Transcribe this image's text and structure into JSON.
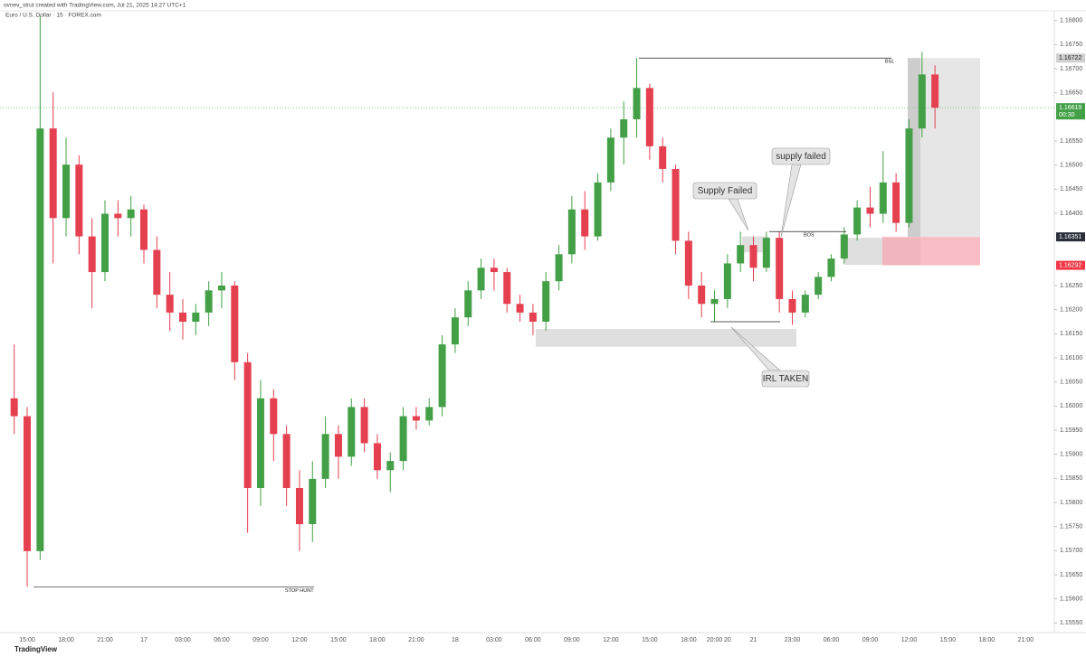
{
  "chart_data": {
    "type": "candlestick",
    "credit": "ovnev_strut created with TradingView.com, Jul 21, 2025 14:27 UTC+1",
    "title": "Euro / U.S. Dollar · 15 · FOREX.com",
    "brand": "TradingView",
    "up_color": "#43a047",
    "down_color": "#e5404f",
    "grid": false,
    "categories": [
      null,
      "15:00",
      null,
      null,
      "18:00",
      null,
      null,
      "21:00",
      null,
      null,
      "17",
      null,
      null,
      "03:00",
      null,
      null,
      "06:00",
      null,
      null,
      "09:00",
      null,
      null,
      "12:00",
      null,
      null,
      "15:00",
      null,
      null,
      "18:00",
      null,
      null,
      "21:00",
      null,
      null,
      "18",
      null,
      null,
      "03:00",
      null,
      null,
      "06:00",
      null,
      null,
      "09:00",
      null,
      null,
      "12:00",
      null,
      null,
      "15:00",
      null,
      null,
      "18:00",
      null,
      "20:00",
      "20",
      null,
      "21",
      null,
      null,
      "23:00",
      null,
      null,
      "06:00",
      null,
      null,
      "09:00",
      null,
      null,
      "12:00",
      null,
      null,
      "15:00",
      null,
      null,
      "18:00",
      null,
      null,
      "21:00",
      null
    ],
    "open": [
      1.16016,
      1.15979,
      1.15699,
      1.16576,
      1.1639,
      1.16501,
      1.16352,
      1.16278,
      1.16399,
      1.1639,
      1.16408,
      1.16324,
      1.16231,
      1.16194,
      1.16175,
      1.16194,
      1.1624,
      1.1625,
      1.16091,
      1.1583,
      1.16016,
      1.15942,
      1.1583,
      1.15755,
      1.15849,
      1.15942,
      1.15895,
      1.15998,
      1.15923,
      1.15867,
      1.15886,
      1.15979,
      1.1597,
      1.15998,
      1.16128,
      1.16184,
      1.1624,
      1.16287,
      1.16278,
      1.16212,
      1.16194,
      1.16175,
      1.16259,
      1.16315,
      1.16408,
      1.16352,
      1.16464,
      1.16557,
      1.16595,
      1.1666,
      1.16539,
      1.16492,
      1.16343,
      1.1625,
      1.16212,
      1.16222,
      1.16296,
      1.16334,
      1.16287,
      1.16349,
      1.16222,
      1.16194,
      1.16231,
      1.16268,
      1.16306,
      1.16356,
      1.16412,
      1.16399,
      1.16464,
      1.1638,
      1.16576,
      1.16688,
      null,
      null,
      null,
      null,
      null,
      null,
      null,
      null
    ],
    "high": [
      1.16128,
      1.15998,
      1.16809,
      1.16651,
      1.16557,
      1.1652,
      1.1639,
      1.16427,
      1.16427,
      1.16436,
      1.16418,
      1.16352,
      1.16278,
      1.16222,
      1.16212,
      1.16259,
      1.16278,
      1.16259,
      1.1611,
      1.16054,
      1.16035,
      1.1596,
      1.15867,
      1.15886,
      1.15979,
      1.1596,
      1.16016,
      1.16016,
      1.15942,
      1.15904,
      1.15998,
      1.15998,
      1.16016,
      1.16147,
      1.16203,
      1.16259,
      1.16306,
      1.16306,
      1.16287,
      1.16231,
      1.16212,
      1.16278,
      1.16334,
      1.16436,
      1.16446,
      1.16483,
      1.16576,
      1.16632,
      1.16722,
      1.16669,
      1.16557,
      1.16501,
      1.16362,
      1.16278,
      1.1624,
      1.16315,
      1.16362,
      1.16352,
      1.16362,
      1.16362,
      1.1624,
      1.1624,
      1.16278,
      1.16315,
      1.16371,
      1.16427,
      1.16455,
      1.16529,
      1.16483,
      1.16595,
      1.16735,
      1.16707,
      null,
      null,
      null,
      null,
      null,
      null,
      null,
      null
    ],
    "low": [
      1.15942,
      1.15625,
      1.15681,
      1.16296,
      1.16352,
      1.16315,
      1.16203,
      1.16259,
      1.16352,
      1.16352,
      1.16296,
      1.16203,
      1.16156,
      1.16138,
      1.16147,
      1.16166,
      1.16203,
      1.16054,
      1.15737,
      1.15793,
      1.15886,
      1.15793,
      1.15699,
      1.15718,
      1.1583,
      1.15849,
      1.15876,
      1.15904,
      1.15849,
      1.15821,
      1.15867,
      1.15951,
      1.1596,
      1.15979,
      1.1611,
      1.16166,
      1.16222,
      1.1624,
      1.16194,
      1.16175,
      1.16147,
      1.16156,
      1.1624,
      1.16296,
      1.16324,
      1.16343,
      1.16446,
      1.16501,
      1.16557,
      1.16511,
      1.16464,
      1.16315,
      1.16222,
      1.16184,
      1.16175,
      1.16203,
      1.16278,
      1.16259,
      1.16278,
      1.16194,
      1.16169,
      1.16184,
      1.16222,
      1.16259,
      1.16296,
      1.16343,
      1.16371,
      1.1638,
      1.16362,
      1.16371,
      1.16557,
      1.16576,
      null,
      null,
      null,
      null,
      null,
      null,
      null,
      null
    ],
    "close": [
      1.15979,
      1.15699,
      1.16576,
      1.1639,
      1.16501,
      1.16352,
      1.16278,
      1.16399,
      1.1639,
      1.16408,
      1.16324,
      1.16231,
      1.16194,
      1.16175,
      1.16194,
      1.1624,
      1.1625,
      1.16091,
      1.1583,
      1.16016,
      1.15942,
      1.1583,
      1.15755,
      1.15849,
      1.15942,
      1.15895,
      1.15998,
      1.15923,
      1.15867,
      1.15886,
      1.15979,
      1.1597,
      1.15998,
      1.16128,
      1.16184,
      1.1624,
      1.16287,
      1.16278,
      1.16212,
      1.16194,
      1.16175,
      1.16259,
      1.16315,
      1.16408,
      1.16352,
      1.16464,
      1.16557,
      1.16595,
      1.1666,
      1.16539,
      1.16492,
      1.16343,
      1.1625,
      1.16212,
      1.16222,
      1.16296,
      1.16334,
      1.16287,
      1.16349,
      1.16222,
      1.16194,
      1.16231,
      1.16268,
      1.16306,
      1.16356,
      1.16412,
      1.16399,
      1.16464,
      1.1638,
      1.16576,
      1.16688,
      1.16619,
      null,
      null,
      null,
      null,
      null,
      null,
      null,
      null
    ],
    "ylim": [
      1.1553,
      1.1682
    ],
    "yticks": [
      {
        "value": 1.1555,
        "label": "1.15550"
      },
      {
        "value": 1.156,
        "label": "1.15600"
      },
      {
        "value": 1.1565,
        "label": "1.15650"
      },
      {
        "value": 1.157,
        "label": "1.15700"
      },
      {
        "value": 1.1575,
        "label": "1.15750"
      },
      {
        "value": 1.158,
        "label": "1.15800"
      },
      {
        "value": 1.1585,
        "label": "1.15850"
      },
      {
        "value": 1.159,
        "label": "1.15900"
      },
      {
        "value": 1.1595,
        "label": "1.15950"
      },
      {
        "value": 1.16,
        "label": "1.16000"
      },
      {
        "value": 1.1605,
        "label": "1.16050"
      },
      {
        "value": 1.161,
        "label": "1.16100"
      },
      {
        "value": 1.1615,
        "label": "1.16150"
      },
      {
        "value": 1.162,
        "label": "1.16200"
      },
      {
        "value": 1.1625,
        "label": "1.16250"
      },
      {
        "value": 1.164,
        "label": "1.16400"
      },
      {
        "value": 1.1645,
        "label": "1.16450"
      },
      {
        "value": 1.165,
        "label": "1.16500"
      },
      {
        "value": 1.1655,
        "label": "1.16550"
      },
      {
        "value": 1.1665,
        "label": "1.16650"
      },
      {
        "value": 1.167,
        "label": "1.16700"
      },
      {
        "value": 1.1675,
        "label": "1.16750"
      },
      {
        "value": 1.168,
        "label": "1.16800"
      }
    ],
    "position": {
      "entry": 1.16351,
      "target": 1.16722,
      "stop": 1.16292
    },
    "current_price": 1.16619,
    "countdown": "00:30",
    "levels": [
      {
        "label": "BSL",
        "price": 1.16722
      },
      {
        "label": "STOP HUNT",
        "price": 1.15625
      },
      {
        "label": "BOS",
        "price": 1.16362
      },
      {
        "price": 1.16175
      }
    ],
    "zones": [
      {
        "from": 1.1616,
        "to": 1.16123
      },
      {
        "from": 1.16352,
        "to": 1.16319
      },
      {
        "from": 1.16349,
        "to": 1.16293
      }
    ],
    "callouts": [
      "Supply Failed",
      "supply failed",
      "IRL TAKEN"
    ]
  }
}
